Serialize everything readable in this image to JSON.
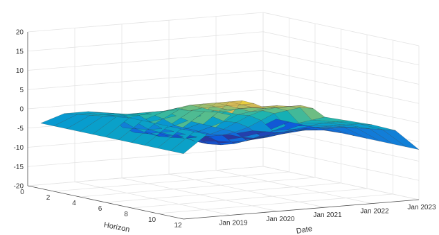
{
  "chart_data": {
    "type": "surface",
    "title": "",
    "xlabel": "Horizon",
    "ylabel": "Date",
    "zlabel": "",
    "colormap": "parula",
    "grid": true,
    "x_ticks": [
      "0",
      "2",
      "4",
      "6",
      "8",
      "10",
      "12"
    ],
    "y_ticks": [
      "Jan 2019",
      "Jan 2020",
      "Jan 2021",
      "Jan 2022",
      "Jan 2023"
    ],
    "z_ticks": [
      "-20",
      "-15",
      "-10",
      "-5",
      "0",
      "5",
      "10",
      "15",
      "20"
    ],
    "xlim": [
      0,
      12
    ],
    "ylim": [
      "2018-01-01",
      "2023-01-01"
    ],
    "zlim": [
      -20,
      20
    ],
    "x": [
      1,
      2,
      3,
      4,
      5,
      6,
      7,
      8,
      9,
      10,
      11,
      12
    ],
    "y": [
      "2018-01",
      "2018-07",
      "2019-01",
      "2019-04",
      "2019-07",
      "2019-10",
      "2020-01",
      "2020-04",
      "2020-07",
      "2020-10",
      "2021-01",
      "2021-07",
      "2022-01",
      "2022-07",
      "2023-01"
    ],
    "z": [
      [
        -3.0,
        -3.0,
        -3.0,
        -3.0,
        -3.0,
        -3.0,
        -3.0,
        -3.0,
        -3.0,
        -3.0,
        -3.0,
        -3.0
      ],
      [
        -1.0,
        -0.5,
        0.0,
        0.5,
        1.0,
        1.5,
        1.5,
        1.5,
        1.5,
        1.5,
        1.5,
        1.5
      ],
      [
        -1.0,
        -0.5,
        0.0,
        0.5,
        1.5,
        2.5,
        3.5,
        4.5,
        5.0,
        5.5,
        6.0,
        6.0
      ],
      [
        -2.0,
        -1.5,
        -1.0,
        0.0,
        1.0,
        2.5,
        4.0,
        5.5,
        6.5,
        7.5,
        8.5,
        9.5
      ],
      [
        -3.0,
        -3.5,
        -3.0,
        -2.0,
        -0.5,
        1.0,
        3.0,
        4.5,
        5.5,
        6.5,
        7.5,
        8.5
      ],
      [
        -6.0,
        -5.5,
        -5.0,
        -4.0,
        -2.5,
        -0.5,
        1.5,
        3.5,
        4.5,
        5.5,
        6.5,
        7.0
      ],
      [
        -7.5,
        -7.0,
        -6.0,
        -5.0,
        -3.5,
        -1.5,
        1.0,
        3.0,
        4.5,
        5.5,
        6.5,
        7.5
      ],
      [
        -7.5,
        -8.0,
        -7.0,
        -6.0,
        -4.5,
        -2.5,
        -0.5,
        2.0,
        3.5,
        5.0,
        6.0,
        7.0
      ],
      [
        -8.0,
        -8.5,
        -8.0,
        -7.0,
        -5.5,
        -3.5,
        -1.0,
        1.5,
        3.5,
        5.0,
        6.0,
        7.0
      ],
      [
        -8.5,
        -8.5,
        -8.0,
        -7.0,
        -6.0,
        -4.5,
        -2.5,
        0.0,
        2.5,
        4.0,
        5.5,
        6.0
      ],
      [
        -9.5,
        -10.0,
        -10.0,
        -9.5,
        -8.5,
        -7.0,
        -5.0,
        -3.0,
        -1.0,
        0.5,
        2.0,
        3.5
      ],
      [
        -10.0,
        -10.5,
        -10.0,
        -9.0,
        -7.5,
        -6.0,
        -4.5,
        -3.0,
        -1.5,
        0.0,
        1.0,
        2.0
      ],
      [
        -10.0,
        -10.0,
        -9.5,
        -8.5,
        -7.0,
        -5.5,
        -4.0,
        -3.0,
        -2.0,
        -1.0,
        0.0,
        0.5
      ],
      [
        -9.5,
        -9.0,
        -8.5,
        -7.5,
        -6.5,
        -5.5,
        -4.5,
        -3.5,
        -3.0,
        -2.5,
        -2.0,
        -1.5
      ],
      [
        -7.0,
        -7.0,
        -7.0,
        -7.0,
        -7.0,
        -7.0,
        -7.0,
        -7.0,
        -7.0,
        -7.0,
        -7.0,
        -7.0
      ]
    ]
  }
}
